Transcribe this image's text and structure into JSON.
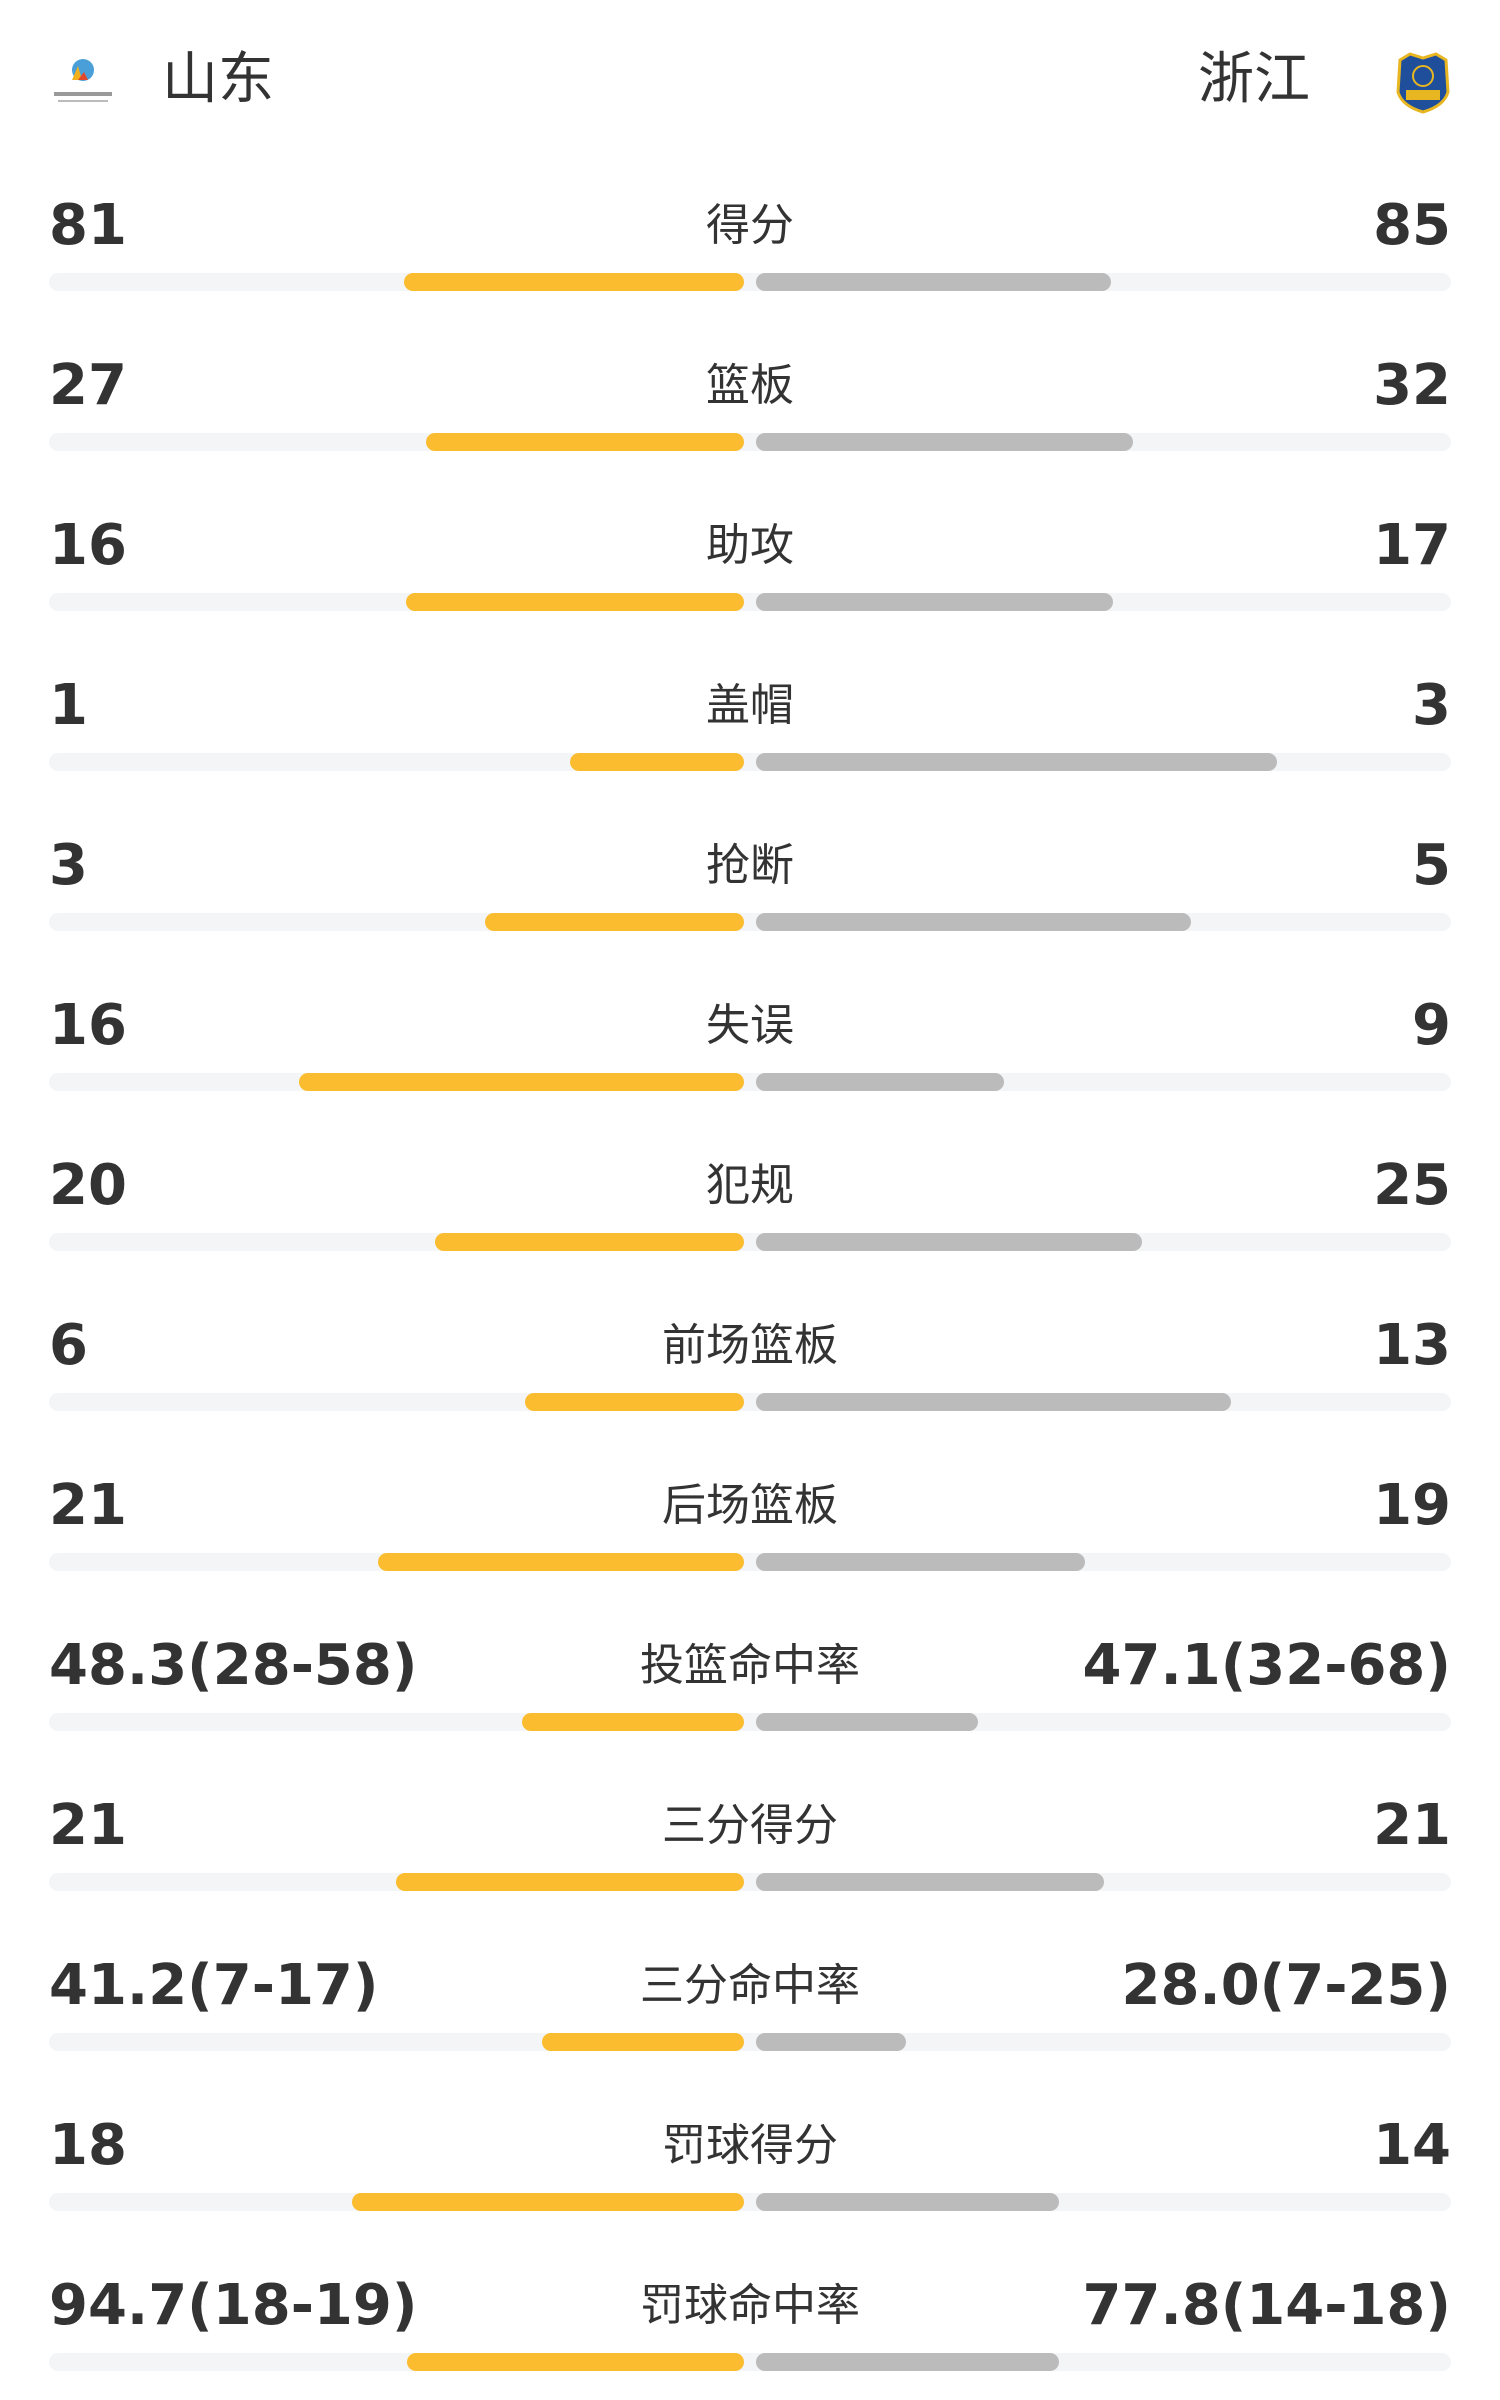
{
  "header": {
    "home_team": "山东",
    "away_team": "浙江",
    "home_logo_icon": "shandong-basketball-association-logo",
    "away_logo_icon": "zhejiang-guangsha-shield-logo"
  },
  "colors": {
    "home_bar": "#fbbd2f",
    "away_bar": "#bbbbbb",
    "track": "#f4f5f7"
  },
  "stats": [
    {
      "label": "得分",
      "home": "81",
      "away": "85",
      "home_fill": 0.489,
      "away_fill": 0.511
    },
    {
      "label": "篮板",
      "home": "27",
      "away": "32",
      "home_fill": 0.458,
      "away_fill": 0.542
    },
    {
      "label": "助攻",
      "home": "16",
      "away": "17",
      "home_fill": 0.486,
      "away_fill": 0.514
    },
    {
      "label": "盖帽",
      "home": "1",
      "away": "3",
      "home_fill": 0.25,
      "away_fill": 0.75
    },
    {
      "label": "抢断",
      "home": "3",
      "away": "5",
      "home_fill": 0.372,
      "away_fill": 0.626
    },
    {
      "label": "失误",
      "home": "16",
      "away": "9",
      "home_fill": 0.641,
      "away_fill": 0.357
    },
    {
      "label": "犯规",
      "home": "20",
      "away": "25",
      "home_fill": 0.445,
      "away_fill": 0.555
    },
    {
      "label": "前场篮板",
      "home": "6",
      "away": "13",
      "home_fill": 0.315,
      "away_fill": 0.683
    },
    {
      "label": "后场篮板",
      "home": "21",
      "away": "19",
      "home_fill": 0.526,
      "away_fill": 0.474
    },
    {
      "label": "投篮命中率",
      "home": "48.3(28-58)",
      "away": "47.1(32-68)",
      "home_fill": 0.32,
      "away_fill": 0.32
    },
    {
      "label": "三分得分",
      "home": "21",
      "away": "21",
      "home_fill": 0.5,
      "away_fill": 0.5
    },
    {
      "label": "三分命中率",
      "home": "41.2(7-17)",
      "away": "28.0(7-25)",
      "home_fill": 0.29,
      "away_fill": 0.216
    },
    {
      "label": "罚球得分",
      "home": "18",
      "away": "14",
      "home_fill": 0.564,
      "away_fill": 0.436
    },
    {
      "label": "罚球命中率",
      "home": "94.7(18-19)",
      "away": "77.8(14-18)",
      "home_fill": 0.485,
      "away_fill": 0.436
    }
  ]
}
